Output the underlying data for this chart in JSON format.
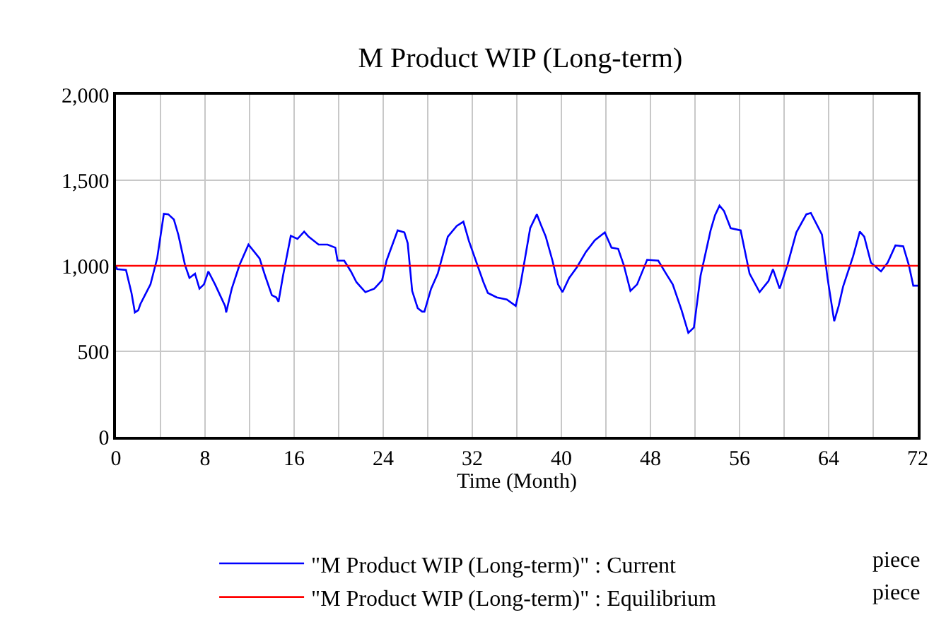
{
  "chart_data": {
    "type": "line",
    "title": "M Product WIP (Long-term)",
    "xlabel": "Time (Month)",
    "xlim": [
      0,
      72
    ],
    "ylim": [
      0,
      2000
    ],
    "xticks": [
      0,
      {
        "value": 4,
        "label": null
      },
      8,
      {
        "value": 12,
        "label": null
      },
      16,
      {
        "value": 20,
        "label": null
      },
      24,
      {
        "value": 28,
        "label": null
      },
      32,
      {
        "value": 36,
        "label": null
      },
      40,
      {
        "value": 44,
        "label": null
      },
      48,
      {
        "value": 52,
        "label": null
      },
      56,
      {
        "value": 60,
        "label": null
      },
      64,
      {
        "value": 68,
        "label": null
      },
      72
    ],
    "yticks": [
      0,
      {
        "value": 500,
        "label": "500"
      },
      {
        "value": 1000,
        "label": "1,000"
      },
      {
        "value": 1500,
        "label": "1,500"
      },
      {
        "value": 2000,
        "label": "2,000"
      }
    ],
    "grid": true,
    "legend": "bottom",
    "line_style": "solid",
    "annotations": [
      "piece",
      "piece"
    ],
    "series": [
      {
        "name": "\"M Product WIP (Long-term)\" : Current",
        "color": "#0000ff",
        "x": [
          0,
          0.1,
          0.9,
          1.4,
          1.7,
          2.0,
          2.2,
          2.6,
          3.1,
          3.7,
          4.3,
          4.7,
          5.2,
          5.6,
          6.2,
          6.6,
          7.1,
          7.5,
          7.9,
          8.3,
          8.9,
          9.8,
          9.9,
          10.4,
          11.1,
          11.9,
          12.9,
          13.4,
          14.0,
          14.4,
          14.6,
          15.0,
          15.7,
          16.3,
          16.9,
          17.3,
          18.2,
          19.0,
          19.7,
          19.9,
          20.5,
          21.1,
          21.6,
          22.4,
          23.2,
          23.9,
          24.3,
          25.3,
          25.9,
          26.2,
          26.6,
          27.1,
          27.5,
          27.7,
          28.3,
          28.9,
          29.8,
          30.6,
          31.2,
          31.7,
          33.0,
          33.4,
          34.2,
          35.1,
          35.9,
          36.3,
          37.2,
          37.8,
          38.2,
          38.6,
          39.2,
          39.7,
          40.1,
          40.7,
          41.4,
          42.2,
          43.0,
          43.9,
          44.5,
          45.1,
          45.6,
          46.2,
          46.8,
          47.7,
          48.7,
          49.4,
          50.0,
          50.8,
          51.4,
          51.9,
          52.5,
          53.4,
          53.8,
          54.2,
          54.6,
          55.2,
          56.1,
          56.9,
          57.8,
          58.6,
          59.0,
          59.6,
          60.3,
          61.1,
          62.0,
          62.4,
          63.4,
          63.9,
          64.5,
          64.9,
          65.3,
          66.2,
          66.8,
          67.2,
          67.8,
          68.7,
          69.3,
          70.0,
          70.7,
          71.2,
          71.6,
          72
        ],
        "values": [
          1000,
          980,
          975,
          840,
          727,
          740,
          777,
          828,
          891,
          1043,
          1304,
          1301,
          1271,
          1182,
          1005,
          929,
          954,
          866,
          891,
          967,
          891,
          765,
          727,
          866,
          1005,
          1124,
          1043,
          941,
          828,
          815,
          790,
          941,
          1175,
          1157,
          1200,
          1170,
          1124,
          1124,
          1106,
          1030,
          1030,
          967,
          904,
          846,
          866,
          916,
          1030,
          1207,
          1195,
          1132,
          853,
          752,
          732,
          732,
          866,
          954,
          1170,
          1233,
          1258,
          1144,
          904,
          841,
          815,
          803,
          765,
          879,
          1220,
          1301,
          1233,
          1170,
          1030,
          891,
          846,
          929,
          992,
          1081,
          1149,
          1195,
          1106,
          1099,
          1005,
          853,
          891,
          1035,
          1030,
          954,
          891,
          739,
          608,
          639,
          942,
          1207,
          1296,
          1352,
          1321,
          1220,
          1207,
          954,
          846,
          911,
          980,
          866,
          1005,
          1195,
          1301,
          1309,
          1182,
          929,
          676,
          765,
          879,
          1056,
          1200,
          1170,
          1018,
          967,
          1018,
          1119,
          1114,
          1005,
          884,
          884
        ]
      },
      {
        "name": "\"M Product WIP (Long-term)\" : Equilibrium",
        "color": "#ff0000",
        "x": [
          0,
          72
        ],
        "values": [
          1000,
          1000
        ]
      }
    ]
  }
}
